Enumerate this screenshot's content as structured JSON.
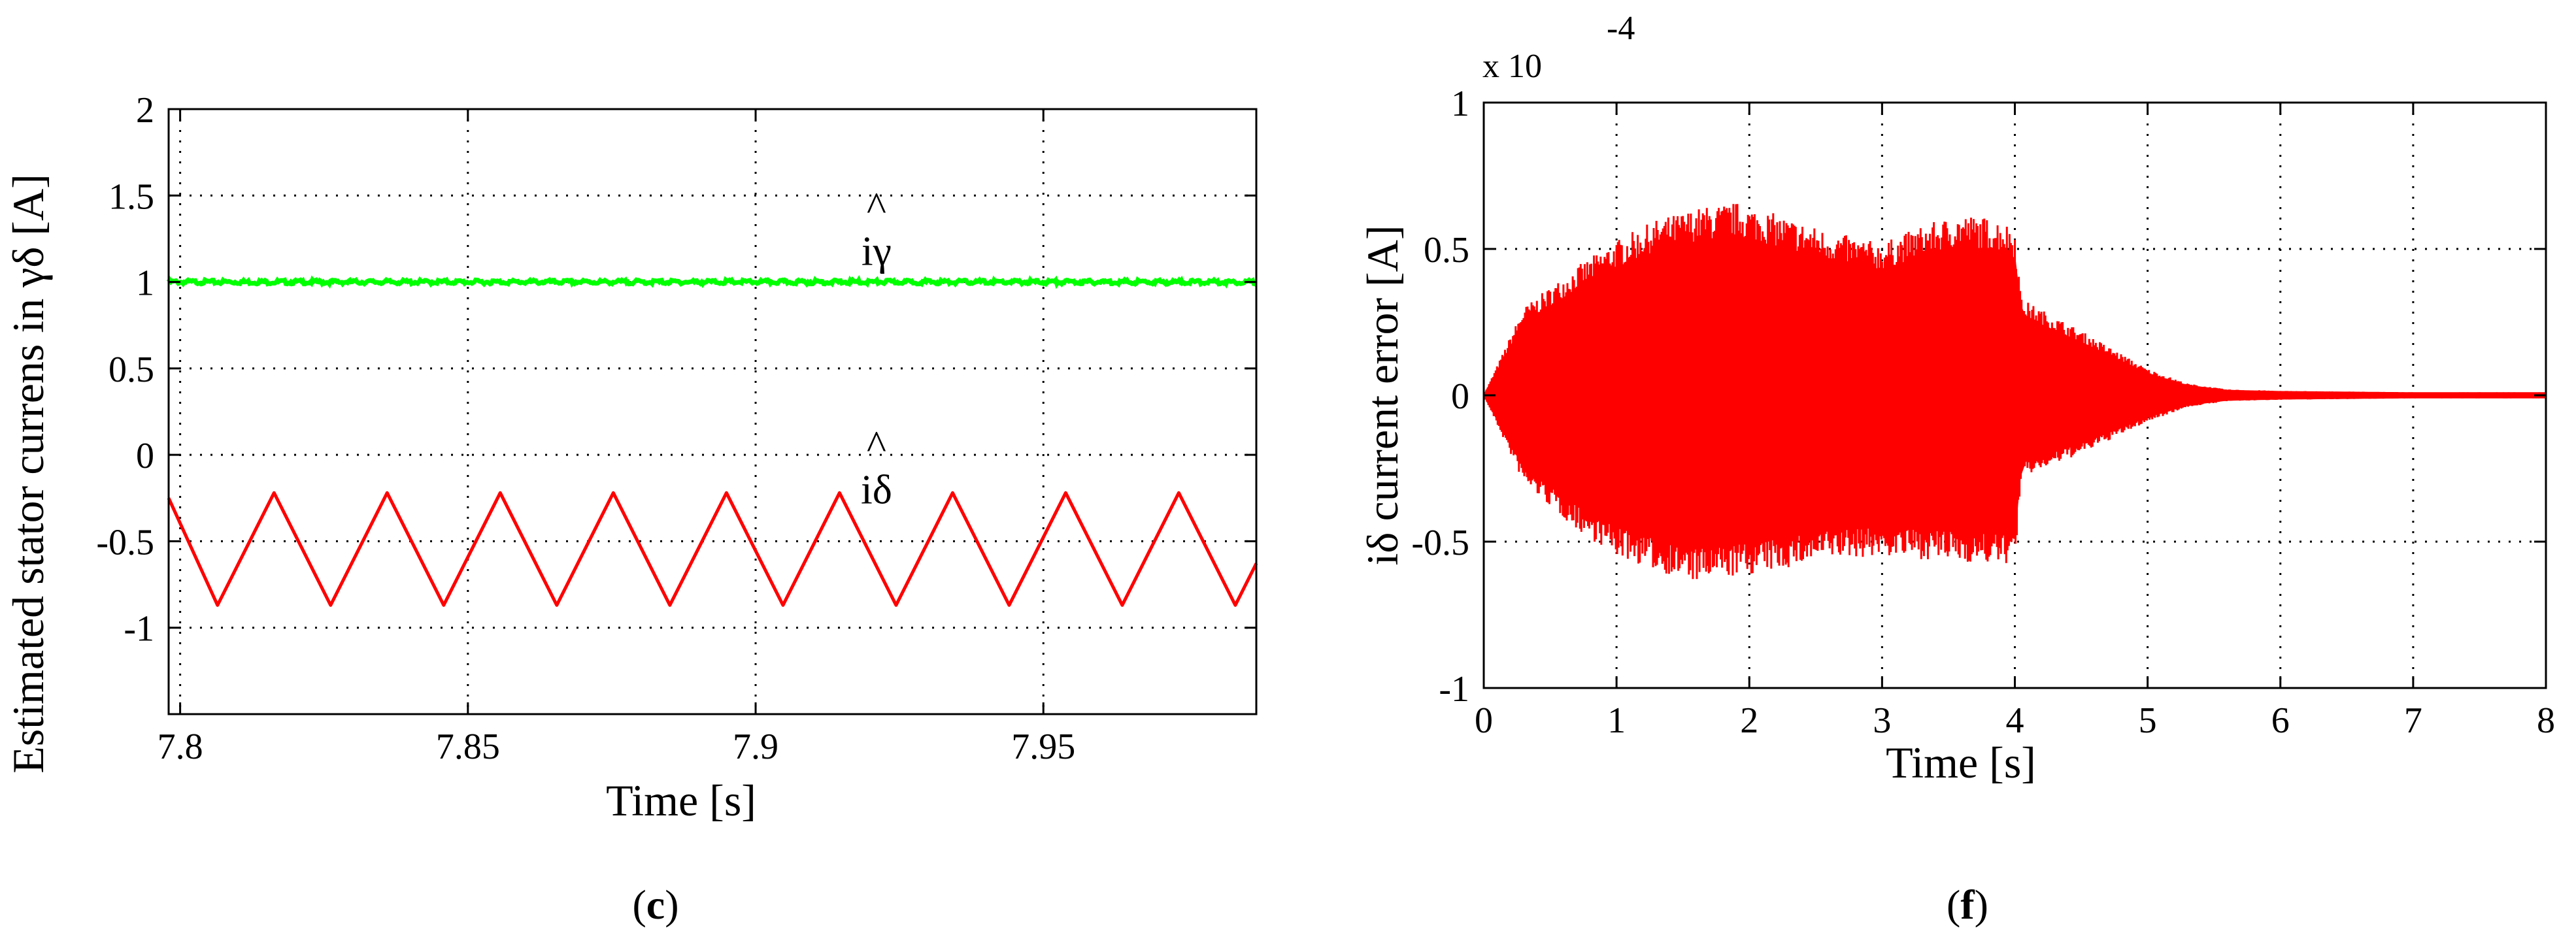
{
  "chart_data": [
    {
      "type": "line",
      "panel_label": "c",
      "panel_paren_open": "(",
      "panel_paren_close": ")",
      "xlabel": "Time [s]",
      "ylabel": "Estimated stator currens in γδ [A]",
      "xlim": [
        7.798,
        7.987
      ],
      "ylim": [
        -1.5,
        2
      ],
      "x_ticks": [
        7.8,
        7.85,
        7.9,
        7.95
      ],
      "x_tick_labels": [
        "7.8",
        "7.85",
        "7.9",
        "7.95"
      ],
      "y_ticks": [
        -1,
        -0.5,
        0,
        0.5,
        1,
        1.5,
        2
      ],
      "y_tick_labels": [
        "-1",
        "-0.5",
        "0",
        "0.5",
        "1",
        "1.5",
        "2"
      ],
      "grid": true,
      "series": [
        {
          "name": "iγ",
          "color": "#00ff00",
          "kind": "constant",
          "value": 1.0
        },
        {
          "name": "iδ",
          "color": "#ff0000",
          "kind": "triangle",
          "min": -0.87,
          "max": -0.22,
          "period_s": 0.01965,
          "first_min_s": 7.8065,
          "start_value": -0.25
        }
      ],
      "annotations": [
        {
          "text": "iγ",
          "hat": "^",
          "x": 7.921,
          "y": 1.25
        },
        {
          "text": "iδ",
          "hat": "^",
          "x": 7.921,
          "y": -0.13
        }
      ]
    },
    {
      "type": "line",
      "panel_label": "f",
      "panel_paren_open": "(",
      "panel_paren_close": ")",
      "xlabel": "Time [s]",
      "ylabel": "iδ current error [A]",
      "xlim": [
        0,
        8
      ],
      "ylim": [
        -1,
        1
      ],
      "y_scale": "x 10",
      "y_scale_exponent": "-4",
      "x_ticks": [
        0,
        1,
        2,
        3,
        4,
        5,
        6,
        7,
        8
      ],
      "x_tick_labels": [
        "0",
        "1",
        "2",
        "3",
        "4",
        "5",
        "6",
        "7",
        "8"
      ],
      "y_ticks": [
        -1,
        -0.5,
        0,
        0.5,
        1
      ],
      "y_tick_labels": [
        "-1",
        "-0.5",
        "0",
        "0.5",
        "1"
      ],
      "grid": true,
      "series": [
        {
          "name": "iδ current error",
          "color": "#ff0000",
          "kind": "oscillation_envelope",
          "envelope_x": [
            0,
            0.3,
            0.7,
            1.0,
            1.3,
            1.6,
            1.9,
            2.2,
            2.6,
            3.0,
            3.3,
            3.6,
            3.9,
            4.0,
            4.05,
            4.5,
            5.0,
            5.3,
            5.6,
            6.0,
            7.0,
            8.0
          ],
          "envelope_upper": [
            0,
            0.3,
            0.44,
            0.53,
            0.6,
            0.64,
            0.66,
            0.62,
            0.56,
            0.52,
            0.58,
            0.62,
            0.6,
            0.57,
            0.33,
            0.22,
            0.09,
            0.04,
            0.02,
            0.015,
            0.01,
            0.01
          ],
          "envelope_lower": [
            0,
            -0.3,
            -0.46,
            -0.55,
            -0.6,
            -0.64,
            -0.62,
            -0.6,
            -0.56,
            -0.55,
            -0.56,
            -0.57,
            -0.58,
            -0.57,
            -0.28,
            -0.2,
            -0.09,
            -0.04,
            -0.02,
            -0.015,
            -0.01,
            -0.01
          ]
        }
      ]
    }
  ]
}
